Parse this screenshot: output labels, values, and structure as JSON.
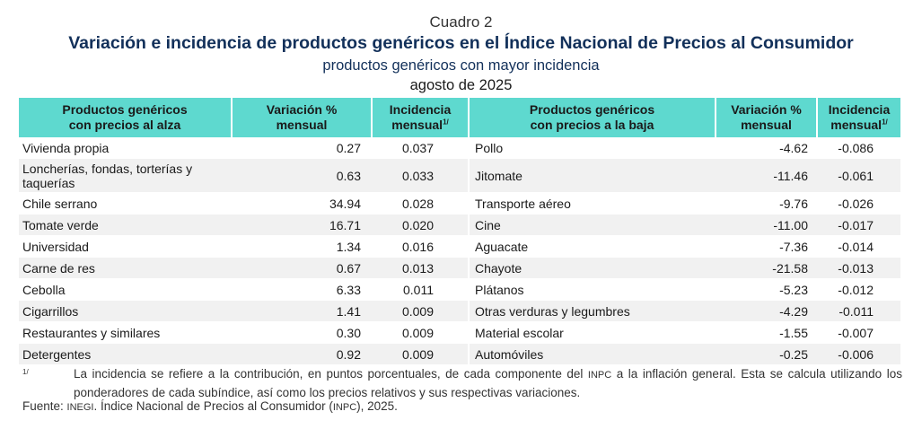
{
  "header": {
    "cuadro": "Cuadro 2",
    "title": "Variación e incidencia de productos genéricos en el Índice Nacional de Precios al Consumidor",
    "subtitle": "productos genéricos con mayor incidencia",
    "period": "agosto de 2025"
  },
  "table": {
    "headers": {
      "col1_line1": "Productos genéricos",
      "col1_line2": "con precios al alza",
      "col2_line1": "Variación %",
      "col2_line2": "mensual",
      "col3_line1": "Incidencia",
      "col3_line2": "mensual",
      "col3_sup": "1/",
      "col4_line1": "Productos genéricos",
      "col4_line2": "con precios a la baja",
      "col5_line1": "Variación %",
      "col5_line2": "mensual",
      "col6_line1": "Incidencia",
      "col6_line2": "mensual",
      "col6_sup": "1/"
    },
    "rows": [
      {
        "up_name": "Vivienda propia",
        "up_var": "0.27",
        "up_inc": "0.037",
        "down_name": "Pollo",
        "down_var": "-4.62",
        "down_inc": "-0.086"
      },
      {
        "up_name": "Loncherías, fondas, torterías y taquerías",
        "up_var": "0.63",
        "up_inc": "0.033",
        "down_name": "Jitomate",
        "down_var": "-11.46",
        "down_inc": "-0.061"
      },
      {
        "up_name": "Chile serrano",
        "up_var": "34.94",
        "up_inc": "0.028",
        "down_name": "Transporte aéreo",
        "down_var": "-9.76",
        "down_inc": "-0.026"
      },
      {
        "up_name": "Tomate verde",
        "up_var": "16.71",
        "up_inc": "0.020",
        "down_name": "Cine",
        "down_var": "-11.00",
        "down_inc": "-0.017"
      },
      {
        "up_name": "Universidad",
        "up_var": "1.34",
        "up_inc": "0.016",
        "down_name": "Aguacate",
        "down_var": "-7.36",
        "down_inc": "-0.014"
      },
      {
        "up_name": "Carne de res",
        "up_var": "0.67",
        "up_inc": "0.013",
        "down_name": "Chayote",
        "down_var": "-21.58",
        "down_inc": "-0.013"
      },
      {
        "up_name": "Cebolla",
        "up_var": "6.33",
        "up_inc": "0.011",
        "down_name": "Plátanos",
        "down_var": "-5.23",
        "down_inc": "-0.012"
      },
      {
        "up_name": "Cigarrillos",
        "up_var": "1.41",
        "up_inc": "0.009",
        "down_name": "Otras verduras y legumbres",
        "down_var": "-4.29",
        "down_inc": "-0.011"
      },
      {
        "up_name": "Restaurantes y similares",
        "up_var": "0.30",
        "up_inc": "0.009",
        "down_name": "Material escolar",
        "down_var": "-1.55",
        "down_inc": "-0.007"
      },
      {
        "up_name": "Detergentes",
        "up_var": "0.92",
        "up_inc": "0.009",
        "down_name": "Automóviles",
        "down_var": "-0.25",
        "down_inc": "-0.006"
      }
    ]
  },
  "footer": {
    "footnote_mark": "1/",
    "footnote_text_a": "La incidencia se refiere a la contribución, en puntos porcentuales, de cada componente del ",
    "footnote_inpc": "INPC",
    "footnote_text_b": " a la inflación general. Esta se calcula utilizando los ponderadores de cada subíndice, así como los precios relativos y sus respectivas variaciones.",
    "source_a": "Fuente: ",
    "source_inegi": "INEGI",
    "source_b": ". Índice Nacional de Precios al Consumidor (",
    "source_inpc": "INPC",
    "source_c": "), 2025."
  },
  "colors": {
    "header_bg": "#5ed9cf",
    "title": "#12305a",
    "row_shade": "#f1f1f1"
  }
}
